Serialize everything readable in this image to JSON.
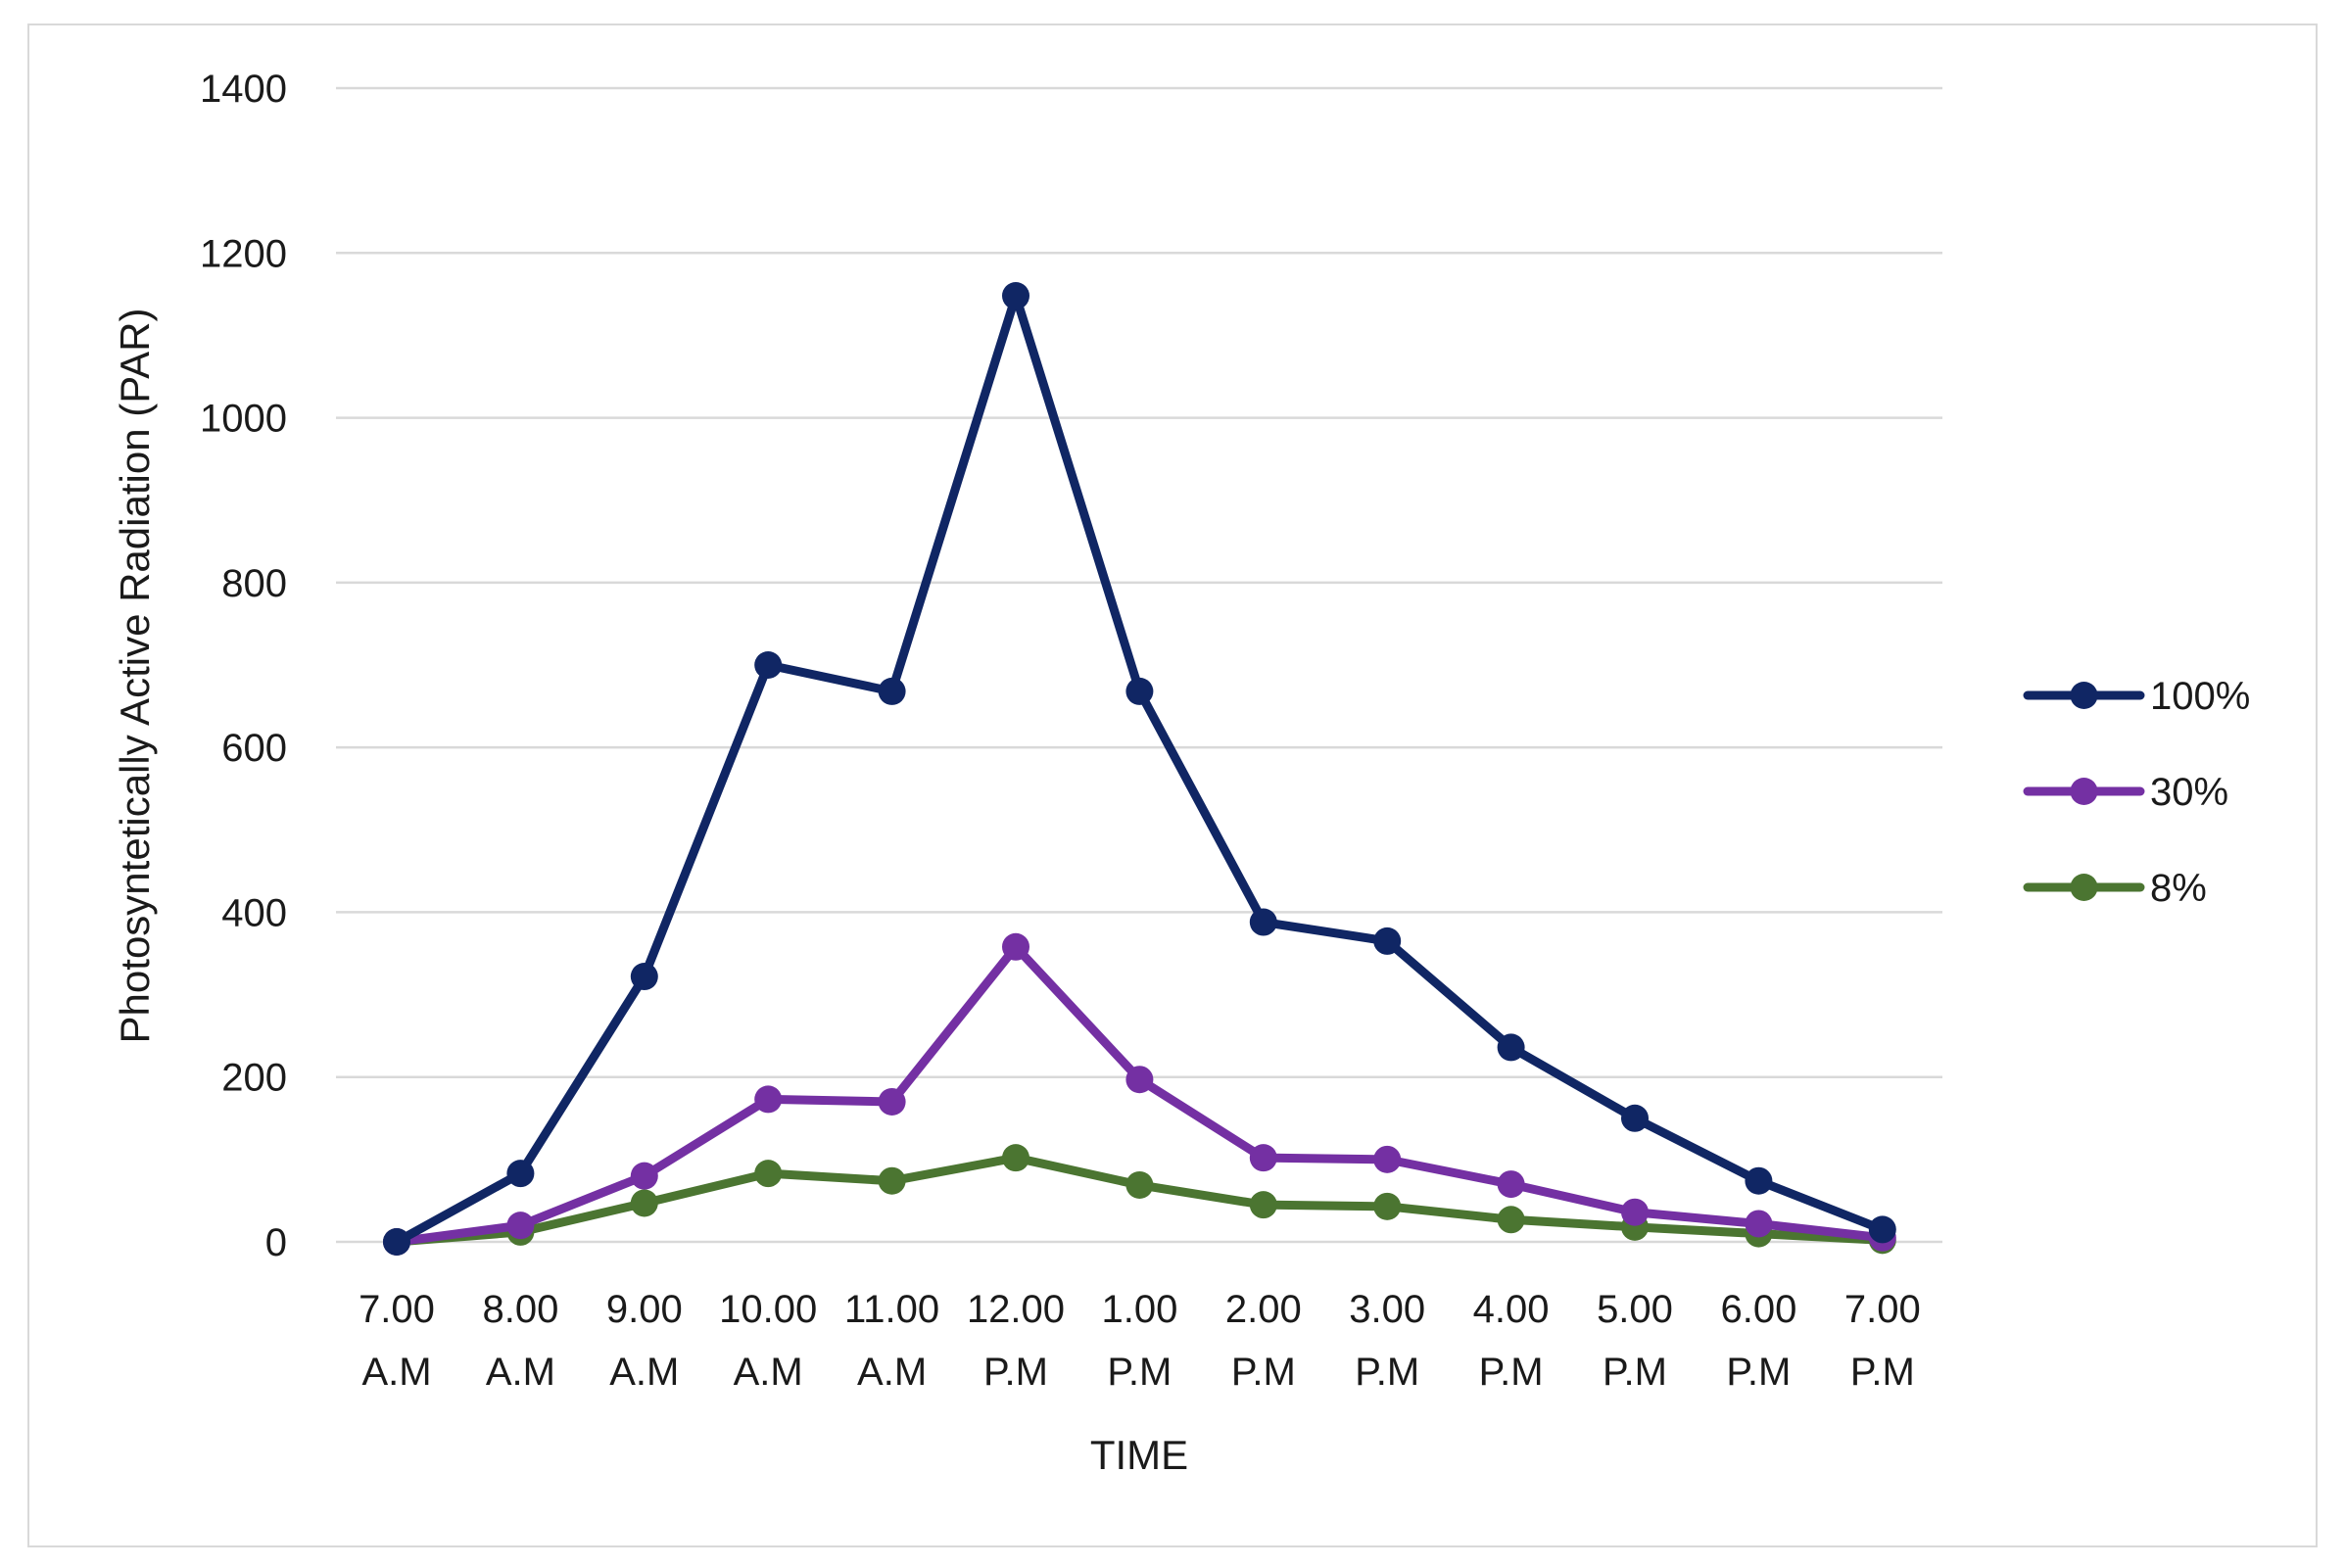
{
  "chart_data": {
    "type": "line",
    "title": "",
    "xlabel": "TIME",
    "ylabel": "Photosyntetically Active Radiation (PAR)",
    "ylim": [
      0,
      1400
    ],
    "yticks": [
      0,
      200,
      400,
      600,
      800,
      1000,
      1200,
      1400
    ],
    "grid": true,
    "legend_position": "right",
    "categories": [
      [
        "7.00",
        "A.M"
      ],
      [
        "8.00",
        "A.M"
      ],
      [
        "9.00",
        "A.M"
      ],
      [
        "10.00",
        "A.M"
      ],
      [
        "11.00",
        "A.M"
      ],
      [
        "12.00",
        "P.M"
      ],
      [
        "1.00",
        "P.M"
      ],
      [
        "2.00",
        "P.M"
      ],
      [
        "3.00",
        "P.M"
      ],
      [
        "4.00",
        "P.M"
      ],
      [
        "5.00",
        "P.M"
      ],
      [
        "6.00",
        "P.M"
      ],
      [
        "7.00",
        "P.M"
      ]
    ],
    "series": [
      {
        "name": "100%",
        "color": "#102664",
        "values": [
          0,
          83,
          322,
          700,
          668,
          1148,
          668,
          388,
          365,
          236,
          150,
          74,
          15
        ]
      },
      {
        "name": "30%",
        "color": "#7430a3",
        "values": [
          0,
          20,
          80,
          173,
          170,
          358,
          197,
          102,
          100,
          70,
          36,
          22,
          5
        ]
      },
      {
        "name": "8%",
        "color": "#4b7531",
        "values": [
          0,
          12,
          47,
          83,
          74,
          102,
          69,
          45,
          43,
          27,
          18,
          10,
          2
        ]
      }
    ]
  }
}
